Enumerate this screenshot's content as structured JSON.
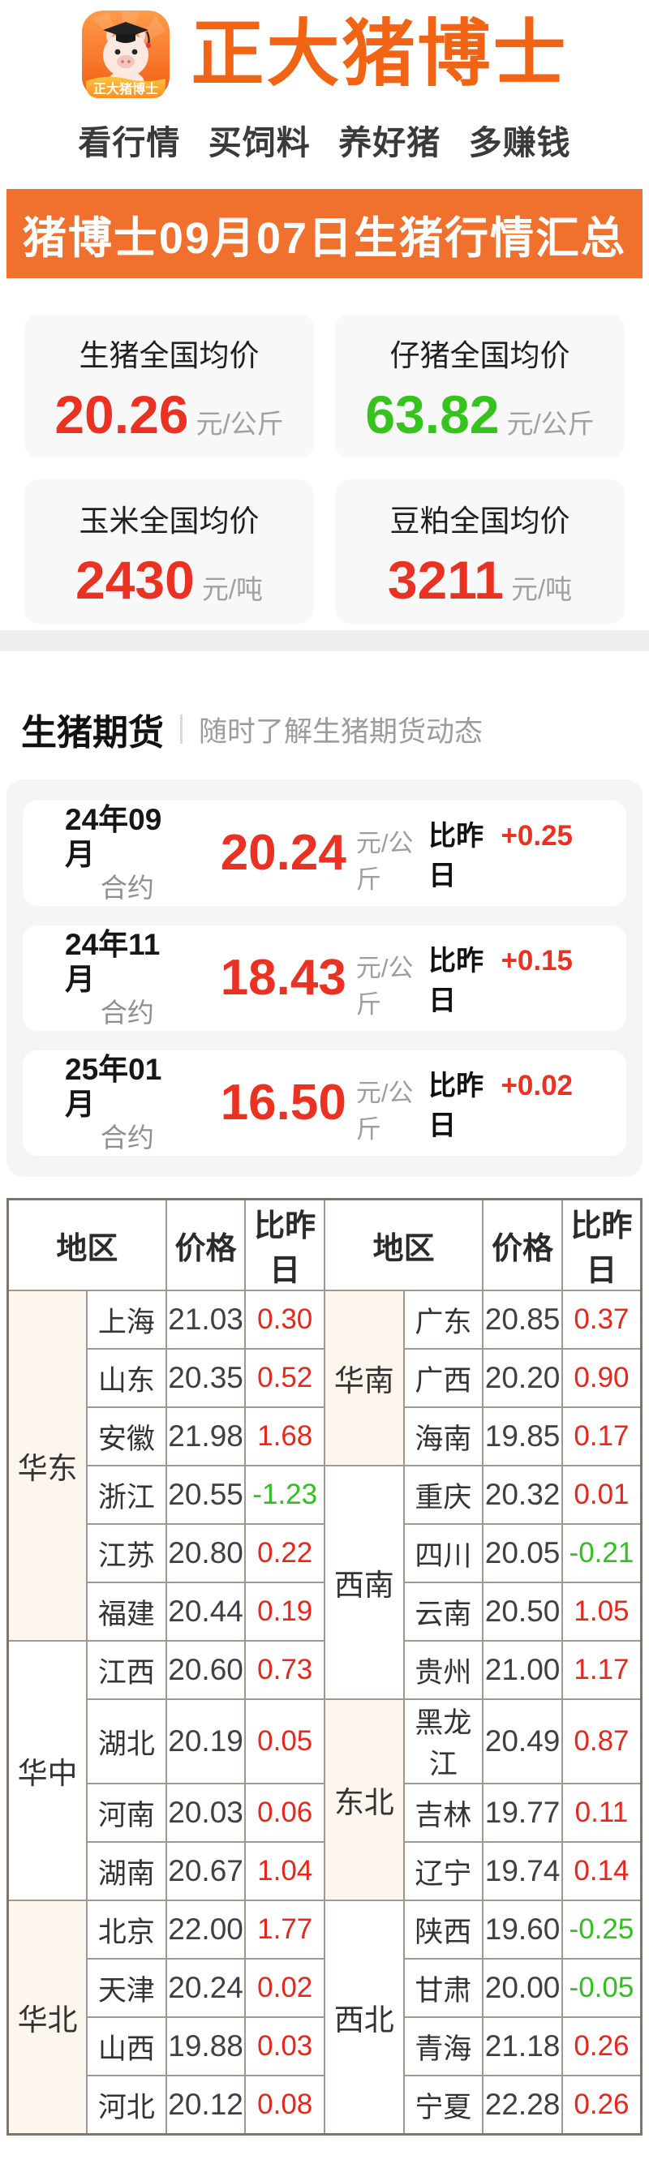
{
  "header": {
    "app_title": "正大猪博士",
    "icon_text": "正大猪博士",
    "tagline": "看行情 买饲料 养好猪 多赚钱"
  },
  "banner": {
    "title": "猪博士09月07日生猪行情汇总"
  },
  "summary_cards": [
    {
      "label": "生猪全国均价",
      "value": "20.26",
      "unit": "元/公斤",
      "color": "red"
    },
    {
      "label": "仔猪全国均价",
      "value": "63.82",
      "unit": "元/公斤",
      "color": "green"
    },
    {
      "label": "玉米全国均价",
      "value": "2430",
      "unit": "元/吨",
      "color": "red"
    },
    {
      "label": "豆粕全国均价",
      "value": "3211",
      "unit": "元/吨",
      "color": "red"
    }
  ],
  "futures": {
    "section_title": "生猪期货",
    "section_subtitle": "随时了解生猪期货动态",
    "contracts": [
      {
        "month": "24年09月",
        "label": "合约",
        "price": "20.24",
        "unit": "元/公斤",
        "vs_label": "比昨日",
        "delta": "+0.25"
      },
      {
        "month": "24年11月",
        "label": "合约",
        "price": "18.43",
        "unit": "元/公斤",
        "vs_label": "比昨日",
        "delta": "+0.15"
      },
      {
        "month": "25年01月",
        "label": "合约",
        "price": "16.50",
        "unit": "元/公斤",
        "vs_label": "比昨日",
        "delta": "+0.02"
      }
    ]
  },
  "table": {
    "headers": [
      "地区",
      "价格",
      "比昨日"
    ],
    "left_groups": [
      {
        "name": "华东",
        "cream": true,
        "rows": [
          [
            "上海",
            "21.03",
            "0.30"
          ],
          [
            "山东",
            "20.35",
            "0.52"
          ],
          [
            "安徽",
            "21.98",
            "1.68"
          ],
          [
            "浙江",
            "20.55",
            "-1.23"
          ],
          [
            "江苏",
            "20.80",
            "0.22"
          ],
          [
            "福建",
            "20.44",
            "0.19"
          ]
        ]
      },
      {
        "name": "华中",
        "cream": false,
        "rows": [
          [
            "江西",
            "20.60",
            "0.73"
          ],
          [
            "湖北",
            "20.19",
            "0.05"
          ],
          [
            "河南",
            "20.03",
            "0.06"
          ],
          [
            "湖南",
            "20.67",
            "1.04"
          ]
        ]
      },
      {
        "name": "华北",
        "cream": true,
        "rows": [
          [
            "北京",
            "22.00",
            "1.77"
          ],
          [
            "天津",
            "20.24",
            "0.02"
          ],
          [
            "山西",
            "19.88",
            "0.03"
          ],
          [
            "河北",
            "20.12",
            "0.08"
          ]
        ]
      }
    ],
    "right_groups": [
      {
        "name": "华南",
        "cream": true,
        "rows": [
          [
            "广东",
            "20.85",
            "0.37"
          ],
          [
            "广西",
            "20.20",
            "0.90"
          ],
          [
            "海南",
            "19.85",
            "0.17"
          ]
        ]
      },
      {
        "name": "西南",
        "cream": false,
        "rows": [
          [
            "重庆",
            "20.32",
            "0.01"
          ],
          [
            "四川",
            "20.05",
            "-0.21"
          ],
          [
            "云南",
            "20.50",
            "1.05"
          ],
          [
            "贵州",
            "21.00",
            "1.17"
          ]
        ]
      },
      {
        "name": "东北",
        "cream": true,
        "rows": [
          [
            "黑龙江",
            "20.49",
            "0.87"
          ],
          [
            "吉林",
            "19.77",
            "0.11"
          ],
          [
            "辽宁",
            "19.74",
            "0.14"
          ]
        ]
      },
      {
        "name": "西北",
        "cream": false,
        "rows": [
          [
            "陕西",
            "19.60",
            "-0.25"
          ],
          [
            "甘肃",
            "20.00",
            "-0.05"
          ],
          [
            "青海",
            "21.18",
            "0.26"
          ],
          [
            "宁夏",
            "22.28",
            "0.26"
          ]
        ]
      }
    ]
  },
  "colors": {
    "accent_orange": "#f26415",
    "banner_orange": "#f0702e",
    "rise_red": "#ea3122",
    "fall_green": "#36c31d",
    "table_border": "#a2978d",
    "group_cell_cream": "#fdf6ee"
  }
}
